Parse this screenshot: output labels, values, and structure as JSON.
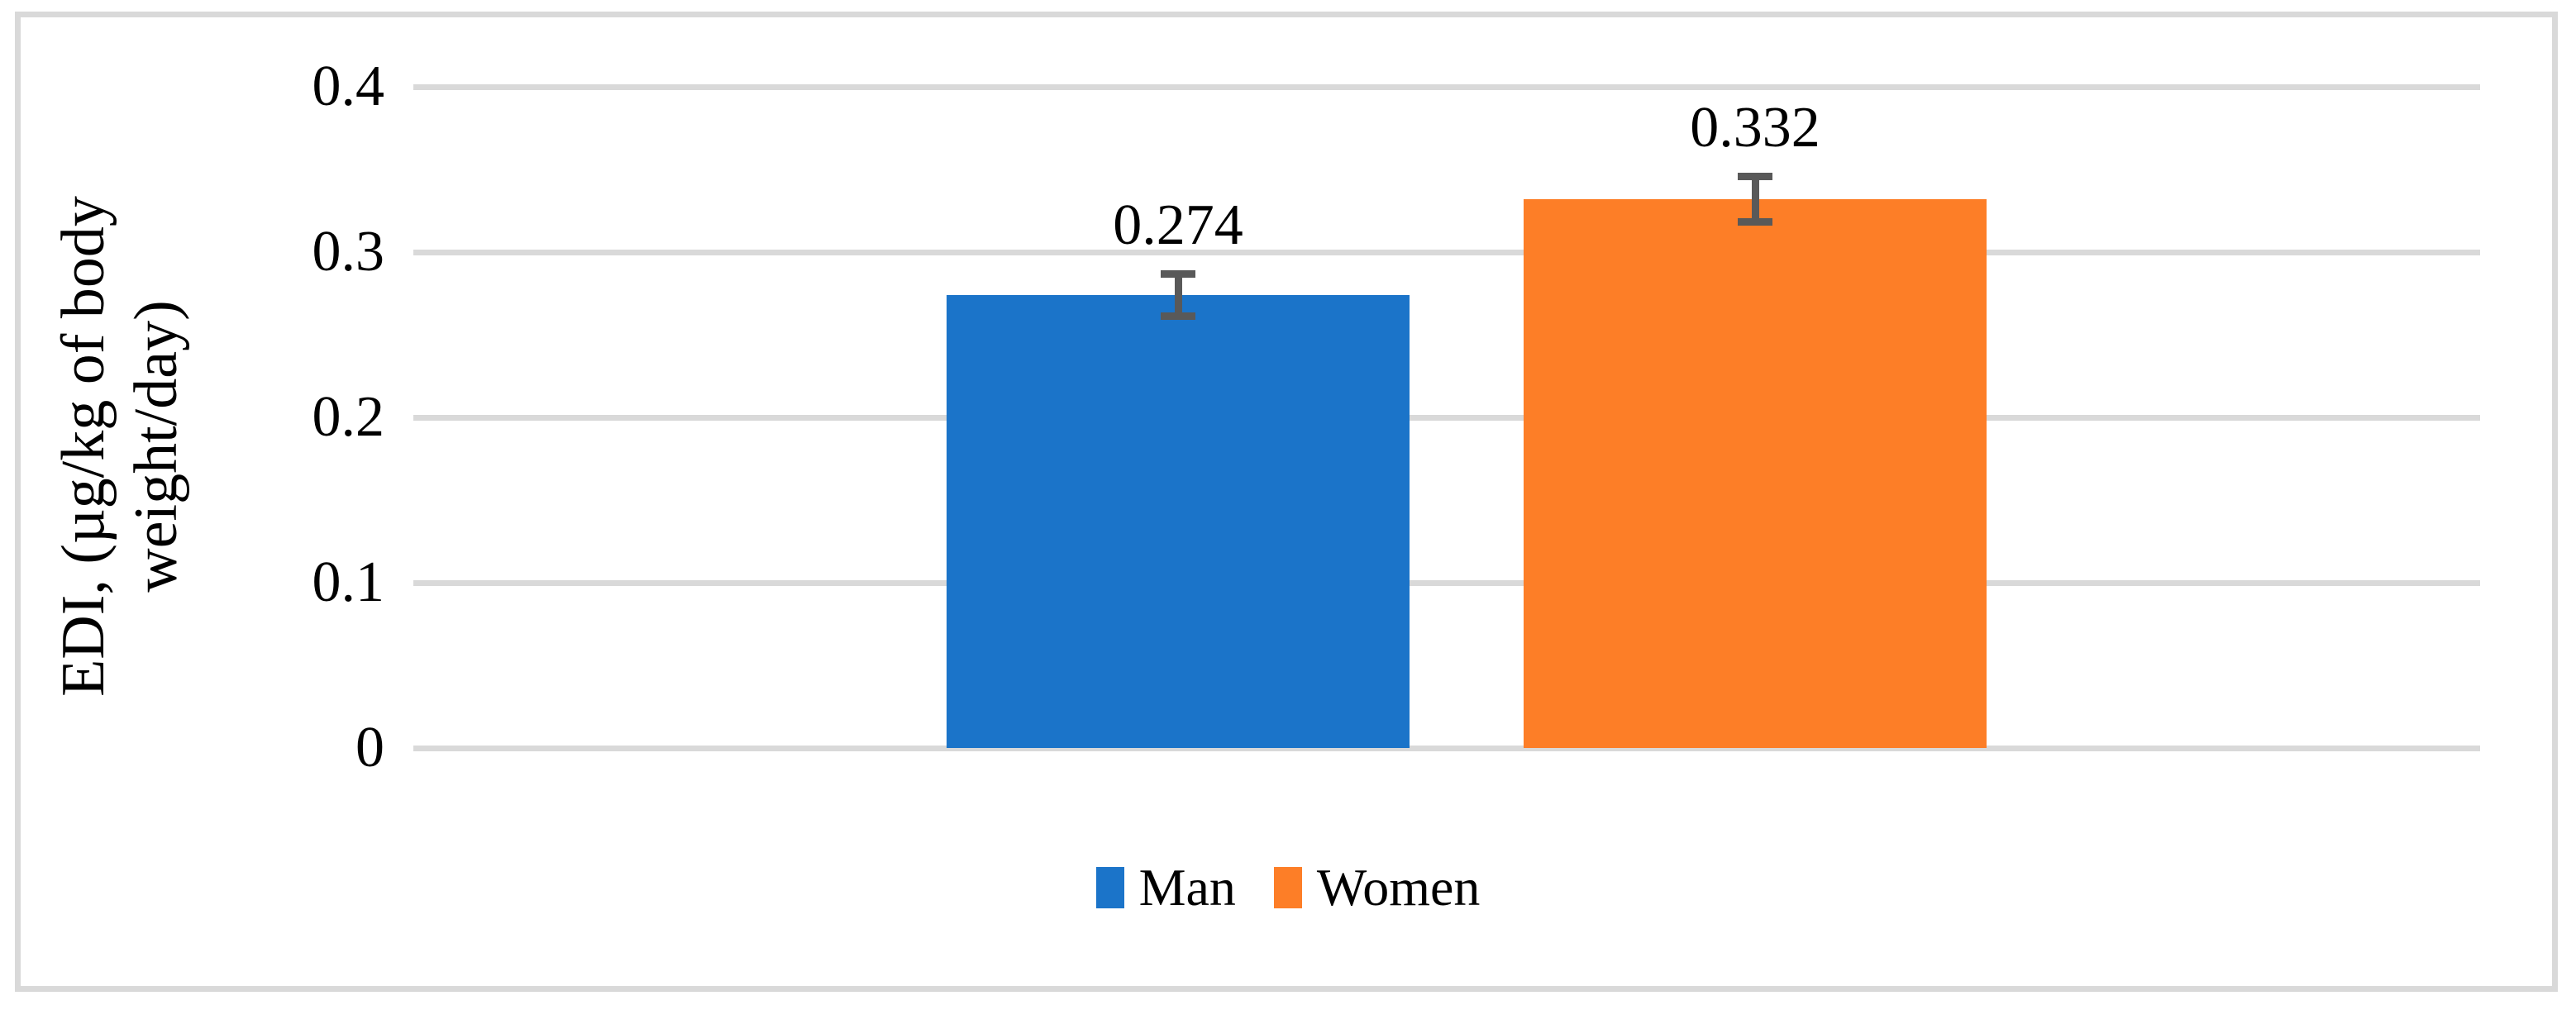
{
  "chart_data": {
    "type": "bar",
    "title": "",
    "ylabel": "EDI, (µg/kg of body weight/day)",
    "ylabel_line1": "EDI, (µg/kg of body",
    "ylabel_line2": "weight/day)",
    "categories": [
      ""
    ],
    "series": [
      {
        "name": "Man",
        "value": 0.274,
        "label": "0.274",
        "error": 0.015,
        "color": "#1B74C9"
      },
      {
        "name": "Women",
        "value": 0.332,
        "label": "0.332",
        "error": 0.016,
        "color": "#FD7E27"
      }
    ],
    "yticks": [
      0,
      0.1,
      0.2,
      0.3,
      0.4
    ],
    "ytick_labels": [
      "0",
      "0.1",
      "0.2",
      "0.3",
      "0.4"
    ],
    "ylim": [
      0,
      0.4
    ],
    "grid": true,
    "legend_position": "bottom",
    "legend": [
      "Man",
      "Women"
    ],
    "colors": {
      "gridline": "#D9D9D9",
      "frame_border": "#D9D9D9",
      "error_bar": "#595959",
      "text": "#000000",
      "background": "#FFFFFF"
    }
  }
}
